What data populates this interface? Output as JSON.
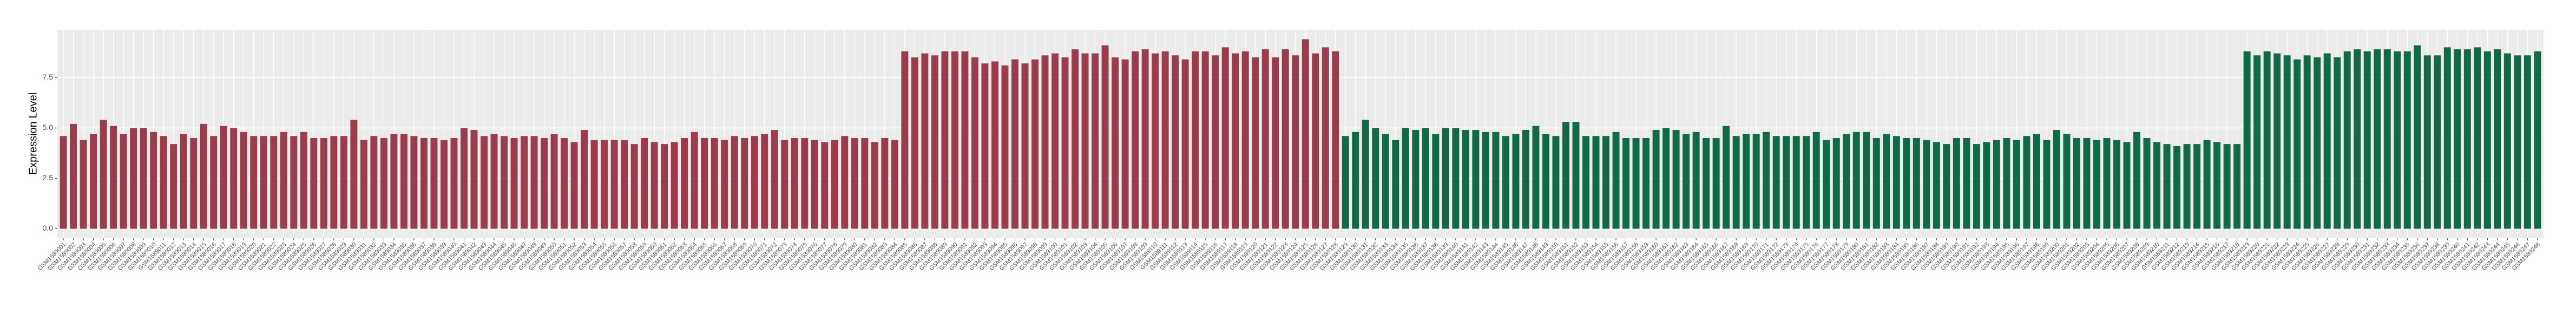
{
  "chart_data": {
    "type": "bar",
    "y_label": "Expression Level",
    "categories": [
      "GSM1589001",
      "GSM1589002",
      "GSM1589003",
      "GSM1589004",
      "GSM1589005",
      "GSM1589006",
      "GSM1589007",
      "GSM1589008",
      "GSM1589009",
      "GSM1589010",
      "GSM1589011",
      "GSM1589012",
      "GSM1589013",
      "GSM1589014",
      "GSM1589015",
      "GSM1589016",
      "GSM1589017",
      "GSM1589018",
      "GSM1589019",
      "GSM1589020",
      "GSM1589021",
      "GSM1589022",
      "GSM1589023",
      "GSM1589024",
      "GSM1589025",
      "GSM1589026",
      "GSM1589027",
      "GSM1589028",
      "GSM1589029",
      "GSM1589030",
      "GSM1589031",
      "GSM1589032",
      "GSM1589033",
      "GSM1589034",
      "GSM1589035",
      "GSM1589036",
      "GSM1589037",
      "GSM1589038",
      "GSM1589039",
      "GSM1589040",
      "GSM1589041",
      "GSM1589042",
      "GSM1589043",
      "GSM1589044",
      "GSM1589045",
      "GSM1589046",
      "GSM1589047",
      "GSM1589048",
      "GSM1589049",
      "GSM1589050",
      "GSM1589051",
      "GSM1589052",
      "GSM1589053",
      "GSM1589054",
      "GSM1589055",
      "GSM1589056",
      "GSM1589057",
      "GSM1589058",
      "GSM1589059",
      "GSM1589060",
      "GSM1589061",
      "GSM1589062",
      "GSM1589063",
      "GSM1589064",
      "GSM1589065",
      "GSM1589066",
      "GSM1589067",
      "GSM1589068",
      "GSM1589069",
      "GSM1589070",
      "GSM1589071",
      "GSM1589072",
      "GSM1589073",
      "GSM1589074",
      "GSM1589075",
      "GSM1589076",
      "GSM1589077",
      "GSM1589078",
      "GSM1589079",
      "GSM1589080",
      "GSM1589081",
      "GSM1589082",
      "GSM1589083",
      "GSM1589084",
      "GSM1589085",
      "GSM1589086",
      "GSM1589087",
      "GSM1589088",
      "GSM1589089",
      "GSM1589090",
      "GSM1589091",
      "GSM1589092",
      "GSM1589093",
      "GSM1589094",
      "GSM1589095",
      "GSM1589096",
      "GSM1589097",
      "GSM1589098",
      "GSM1589099",
      "GSM1589100",
      "GSM1589101",
      "GSM1589102",
      "GSM1589103",
      "GSM1589104",
      "GSM1589105",
      "GSM1589106",
      "GSM1589107",
      "GSM1589108",
      "GSM1589109",
      "GSM1589110",
      "GSM1589111",
      "GSM1589112",
      "GSM1589113",
      "GSM1589114",
      "GSM1589115",
      "GSM1589116",
      "GSM1589117",
      "GSM1589118",
      "GSM1589119",
      "GSM1589120",
      "GSM1589121",
      "GSM1589122",
      "GSM1589123",
      "GSM1589124",
      "GSM1589125",
      "GSM1589126",
      "GSM1589127",
      "GSM1589128",
      "GSM1589129",
      "GSM1589130",
      "GSM1589131",
      "GSM1589132",
      "GSM1589133",
      "GSM1589134",
      "GSM1589135",
      "GSM1589136",
      "GSM1589137",
      "GSM1589138",
      "GSM1589139",
      "GSM1589140",
      "GSM1589141",
      "GSM1589142",
      "GSM1589143",
      "GSM1589144",
      "GSM1589145",
      "GSM1589146",
      "GSM1589147",
      "GSM1589148",
      "GSM1589149",
      "GSM1589150",
      "GSM1589151",
      "GSM1589152",
      "GSM1589153",
      "GSM1589154",
      "GSM1589155",
      "GSM1589156",
      "GSM1589157",
      "GSM1589158",
      "GSM1589159",
      "GSM1589160",
      "GSM1589161",
      "GSM1589162",
      "GSM1589163",
      "GSM1589164",
      "GSM1589165",
      "GSM1589166",
      "GSM1589167",
      "GSM1589168",
      "GSM1589169",
      "GSM1589170",
      "GSM1589171",
      "GSM1589172",
      "GSM1589173",
      "GSM1589174",
      "GSM1589175",
      "GSM1589176",
      "GSM1589177",
      "GSM1589178",
      "GSM1589179",
      "GSM1589180",
      "GSM1589181",
      "GSM1589182",
      "GSM1589183",
      "GSM1589184",
      "GSM1589185",
      "GSM1589186",
      "GSM1589187",
      "GSM1589188",
      "GSM1589189",
      "GSM1589190",
      "GSM1589191",
      "GSM1589192",
      "GSM1589193",
      "GSM1589194",
      "GSM1589195",
      "GSM1589196",
      "GSM1589197",
      "GSM1589198",
      "GSM1589199",
      "GSM1589200",
      "GSM1589201",
      "GSM1589202",
      "GSM1589203",
      "GSM1589204",
      "GSM1589205",
      "GSM1589206",
      "GSM1589207",
      "GSM1589208",
      "GSM1589209",
      "GSM1589210",
      "GSM1589211",
      "GSM1589212",
      "GSM1589213",
      "GSM1589214",
      "GSM1589215",
      "GSM1589216",
      "GSM1589217",
      "GSM1589218",
      "GSM1589219",
      "GSM1589220",
      "GSM1589221",
      "GSM1589222",
      "GSM1589223",
      "GSM1589224",
      "GSM1589225",
      "GSM1589226",
      "GSM1589227",
      "GSM1589228",
      "GSM1589229",
      "GSM1589230",
      "GSM1589231",
      "GSM1589232",
      "GSM1589233",
      "GSM1589234",
      "GSM1589235",
      "GSM1589236",
      "GSM1589237",
      "GSM1589238",
      "GSM1589239",
      "GSM1589240",
      "GSM1589241",
      "GSM1589242",
      "GSM1589243",
      "GSM1589244",
      "GSM1589245",
      "GSM1589246",
      "GSM1589247",
      "GSM1589248"
    ],
    "values": [
      4.6,
      5.2,
      4.4,
      4.7,
      5.4,
      5.1,
      4.7,
      5.0,
      5.0,
      4.8,
      4.6,
      4.2,
      4.7,
      4.5,
      5.2,
      4.6,
      5.1,
      5.0,
      4.8,
      4.6,
      4.6,
      4.6,
      4.8,
      4.6,
      4.8,
      4.5,
      4.5,
      4.6,
      4.6,
      5.4,
      4.4,
      4.6,
      4.5,
      4.7,
      4.7,
      4.6,
      4.5,
      4.5,
      4.4,
      4.5,
      5.0,
      4.9,
      4.6,
      4.7,
      4.6,
      4.5,
      4.6,
      4.6,
      4.5,
      4.7,
      4.5,
      4.3,
      4.9,
      4.4,
      4.4,
      4.4,
      4.4,
      4.2,
      4.5,
      4.3,
      4.2,
      4.3,
      4.5,
      4.8,
      4.5,
      4.5,
      4.4,
      4.6,
      4.5,
      4.6,
      4.7,
      4.9,
      4.4,
      4.5,
      4.5,
      4.4,
      4.3,
      4.4,
      4.6,
      4.5,
      4.5,
      4.3,
      4.5,
      4.4,
      8.8,
      8.5,
      8.7,
      8.6,
      8.8,
      8.8,
      8.8,
      8.5,
      8.2,
      8.3,
      8.1,
      8.4,
      8.2,
      8.4,
      8.6,
      8.7,
      8.5,
      8.9,
      8.7,
      8.7,
      9.1,
      8.5,
      8.4,
      8.8,
      8.9,
      8.7,
      8.8,
      8.6,
      8.4,
      8.8,
      8.8,
      8.6,
      9.0,
      8.7,
      8.8,
      8.5,
      8.9,
      8.5,
      8.9,
      8.6,
      9.4,
      8.7,
      9.0,
      8.8,
      4.6,
      4.8,
      5.4,
      5.0,
      4.7,
      4.4,
      5.0,
      4.9,
      5.0,
      4.7,
      5.0,
      5.0,
      4.9,
      4.9,
      4.8,
      4.8,
      4.6,
      4.7,
      4.9,
      5.1,
      4.7,
      4.6,
      5.3,
      5.3,
      4.6,
      4.6,
      4.6,
      4.8,
      4.5,
      4.5,
      4.5,
      4.9,
      5.0,
      4.9,
      4.7,
      4.8,
      4.5,
      4.5,
      5.1,
      4.6,
      4.7,
      4.7,
      4.8,
      4.6,
      4.6,
      4.6,
      4.6,
      4.8,
      4.4,
      4.5,
      4.7,
      4.8,
      4.8,
      4.5,
      4.7,
      4.6,
      4.5,
      4.5,
      4.4,
      4.3,
      4.2,
      4.5,
      4.5,
      4.2,
      4.3,
      4.4,
      4.5,
      4.4,
      4.6,
      4.7,
      4.4,
      4.9,
      4.7,
      4.5,
      4.5,
      4.4,
      4.5,
      4.4,
      4.3,
      4.8,
      4.5,
      4.3,
      4.2,
      4.1,
      4.2,
      4.2,
      4.4,
      4.3,
      4.2,
      4.2,
      8.8,
      8.6,
      8.8,
      8.7,
      8.6,
      8.4,
      8.6,
      8.5,
      8.7,
      8.5,
      8.8,
      8.9,
      8.8,
      8.9,
      8.9,
      8.8,
      8.8,
      9.1,
      8.6,
      8.6,
      9.0,
      8.9,
      8.9,
      9.0,
      8.8,
      8.9,
      8.7,
      8.6,
      8.6,
      8.8
    ],
    "colors": [
      "#9a3c4c",
      "#9a3c4c",
      "#9a3c4c",
      "#9a3c4c",
      "#9a3c4c",
      "#9a3c4c",
      "#9a3c4c",
      "#9a3c4c",
      "#9a3c4c",
      "#9a3c4c",
      "#9a3c4c",
      "#9a3c4c",
      "#9a3c4c",
      "#9a3c4c",
      "#9a3c4c",
      "#9a3c4c",
      "#9a3c4c",
      "#9a3c4c",
      "#9a3c4c",
      "#9a3c4c",
      "#9a3c4c",
      "#9a3c4c",
      "#9a3c4c",
      "#9a3c4c",
      "#9a3c4c",
      "#9a3c4c",
      "#9a3c4c",
      "#9a3c4c",
      "#9a3c4c",
      "#9a3c4c",
      "#9a3c4c",
      "#9a3c4c",
      "#9a3c4c",
      "#9a3c4c",
      "#9a3c4c",
      "#9a3c4c",
      "#9a3c4c",
      "#9a3c4c",
      "#9a3c4c",
      "#9a3c4c",
      "#9a3c4c",
      "#9a3c4c",
      "#9a3c4c",
      "#9a3c4c",
      "#9a3c4c",
      "#9a3c4c",
      "#9a3c4c",
      "#9a3c4c",
      "#9a3c4c",
      "#9a3c4c",
      "#9a3c4c",
      "#9a3c4c",
      "#9a3c4c",
      "#9a3c4c",
      "#9a3c4c",
      "#9a3c4c",
      "#9a3c4c",
      "#9a3c4c",
      "#9a3c4c",
      "#9a3c4c",
      "#9a3c4c",
      "#9a3c4c",
      "#9a3c4c",
      "#9a3c4c",
      "#9a3c4c",
      "#9a3c4c",
      "#9a3c4c",
      "#9a3c4c",
      "#9a3c4c",
      "#9a3c4c",
      "#9a3c4c",
      "#9a3c4c",
      "#9a3c4c",
      "#9a3c4c",
      "#9a3c4c",
      "#9a3c4c",
      "#9a3c4c",
      "#9a3c4c",
      "#9a3c4c",
      "#9a3c4c",
      "#9a3c4c",
      "#9a3c4c",
      "#9a3c4c",
      "#9a3c4c",
      "#9a3c4c",
      "#9a3c4c",
      "#9a3c4c",
      "#9a3c4c",
      "#9a3c4c",
      "#9a3c4c",
      "#9a3c4c",
      "#9a3c4c",
      "#9a3c4c",
      "#9a3c4c",
      "#9a3c4c",
      "#9a3c4c",
      "#9a3c4c",
      "#9a3c4c",
      "#9a3c4c",
      "#9a3c4c",
      "#9a3c4c",
      "#9a3c4c",
      "#9a3c4c",
      "#9a3c4c",
      "#9a3c4c",
      "#9a3c4c",
      "#9a3c4c",
      "#9a3c4c",
      "#9a3c4c",
      "#9a3c4c",
      "#9a3c4c",
      "#9a3c4c",
      "#9a3c4c",
      "#9a3c4c",
      "#9a3c4c",
      "#9a3c4c",
      "#9a3c4c",
      "#9a3c4c",
      "#9a3c4c",
      "#9a3c4c",
      "#9a3c4c",
      "#9a3c4c",
      "#9a3c4c",
      "#9a3c4c",
      "#9a3c4c",
      "#9a3c4c",
      "#9a3c4c",
      "#9a3c4c",
      "#0f6a45",
      "#0f6a45",
      "#0f6a45",
      "#0f6a45",
      "#0f6a45",
      "#0f6a45",
      "#0f6a45",
      "#0f6a45",
      "#0f6a45",
      "#0f6a45",
      "#0f6a45",
      "#0f6a45",
      "#0f6a45",
      "#0f6a45",
      "#0f6a45",
      "#0f6a45",
      "#0f6a45",
      "#0f6a45",
      "#0f6a45",
      "#0f6a45",
      "#0f6a45",
      "#0f6a45",
      "#0f6a45",
      "#0f6a45",
      "#0f6a45",
      "#0f6a45",
      "#0f6a45",
      "#0f6a45",
      "#0f6a45",
      "#0f6a45",
      "#0f6a45",
      "#0f6a45",
      "#0f6a45",
      "#0f6a45",
      "#0f6a45",
      "#0f6a45",
      "#0f6a45",
      "#0f6a45",
      "#0f6a45",
      "#0f6a45",
      "#0f6a45",
      "#0f6a45",
      "#0f6a45",
      "#0f6a45",
      "#0f6a45",
      "#0f6a45",
      "#0f6a45",
      "#0f6a45",
      "#0f6a45",
      "#0f6a45",
      "#0f6a45",
      "#0f6a45",
      "#0f6a45",
      "#0f6a45",
      "#0f6a45",
      "#0f6a45",
      "#0f6a45",
      "#0f6a45",
      "#0f6a45",
      "#0f6a45",
      "#0f6a45",
      "#0f6a45",
      "#0f6a45",
      "#0f6a45",
      "#0f6a45",
      "#0f6a45",
      "#0f6a45",
      "#0f6a45",
      "#0f6a45",
      "#0f6a45",
      "#0f6a45",
      "#0f6a45",
      "#0f6a45",
      "#0f6a45",
      "#0f6a45",
      "#0f6a45",
      "#0f6a45",
      "#0f6a45",
      "#0f6a45",
      "#0f6a45",
      "#0f6a45",
      "#0f6a45",
      "#0f6a45",
      "#0f6a45",
      "#0f6a45",
      "#0f6a45",
      "#0f6a45",
      "#0f6a45",
      "#0f6a45",
      "#0f6a45",
      "#0f6a45",
      "#0f6a45",
      "#0f6a45",
      "#0f6a45",
      "#0f6a45",
      "#0f6a45",
      "#0f6a45",
      "#0f6a45",
      "#0f6a45",
      "#0f6a45",
      "#0f6a45",
      "#0f6a45",
      "#0f6a45",
      "#0f6a45",
      "#0f6a45",
      "#0f6a45",
      "#0f6a45",
      "#0f6a45",
      "#0f6a45",
      "#0f6a45",
      "#0f6a45",
      "#0f6a45",
      "#0f6a45",
      "#0f6a45",
      "#0f6a45",
      "#0f6a45",
      "#0f6a45",
      "#0f6a45",
      "#0f6a45",
      "#0f6a45"
    ],
    "ylim": [
      -0.47,
      9.87
    ],
    "yticks": [
      {
        "value": 0,
        "label": "0.0"
      },
      2.5,
      {
        "value": 5,
        "label": "5.0"
      },
      7.5
    ],
    "grid": true
  }
}
